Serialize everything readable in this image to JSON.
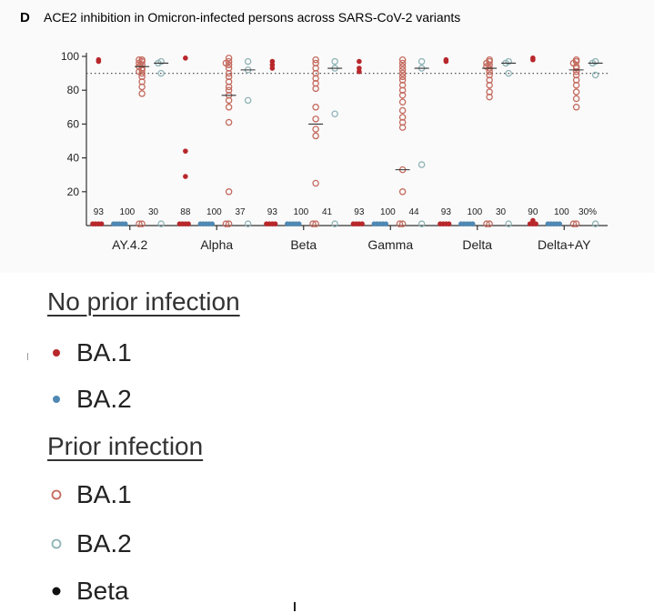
{
  "chart_data": {
    "type": "scatter",
    "panel_letter": "D",
    "title": "ACE2 inhibition in Omicron-infected persons across SARS-CoV-2 variants",
    "ylim": [
      0,
      100
    ],
    "yticks": [
      20,
      40,
      60,
      80,
      100
    ],
    "threshold": 90,
    "grid": false,
    "categories": [
      "AY.4.2",
      "Alpha",
      "Beta",
      "Gamma",
      "Delta",
      "Delta+AY"
    ],
    "groups": [
      "no_prior_BA1",
      "no_prior_BA2",
      "prior_BA1",
      "prior_BA2"
    ],
    "percent_labels": [
      [
        "93",
        "100",
        "30"
      ],
      [
        "88",
        "100",
        "37"
      ],
      [
        "93",
        "100",
        "41"
      ],
      [
        "93",
        "100",
        "44"
      ],
      [
        "93",
        "100",
        "30"
      ],
      [
        "90",
        "100",
        "30%"
      ]
    ],
    "series": [
      {
        "group": "no_prior_BA1",
        "values": [
          [
            98,
            97,
            1,
            1,
            1,
            1
          ],
          [
            99,
            44,
            29,
            1,
            1,
            1,
            1
          ],
          [
            97,
            95,
            93,
            1,
            1,
            1,
            1
          ],
          [
            97,
            93,
            91,
            1,
            1,
            1,
            1
          ],
          [
            98,
            97,
            1,
            1,
            1,
            1
          ],
          [
            99,
            98,
            3,
            1,
            1,
            1
          ]
        ],
        "medians": [
          null,
          null,
          null,
          null,
          null,
          null
        ]
      },
      {
        "group": "no_prior_BA2",
        "values": [
          [
            1,
            1,
            1,
            1,
            1
          ],
          [
            1,
            1,
            1,
            1,
            1
          ],
          [
            1,
            1,
            1,
            1,
            1
          ],
          [
            1,
            1,
            1,
            1,
            1
          ],
          [
            1,
            1,
            1,
            1,
            1
          ],
          [
            1,
            1,
            1,
            1,
            1
          ]
        ],
        "medians": [
          null,
          null,
          null,
          null,
          null,
          null
        ]
      },
      {
        "group": "prior_BA1",
        "values": [
          [
            98,
            98,
            97,
            96,
            95,
            94,
            93,
            92,
            91,
            90,
            88,
            85,
            82,
            78,
            1,
            1
          ],
          [
            99,
            97,
            96,
            95,
            93,
            90,
            88,
            85,
            82,
            80,
            77,
            74,
            70,
            61,
            20,
            1,
            1
          ],
          [
            98,
            96,
            93,
            90,
            87,
            84,
            81,
            70,
            63,
            57,
            53,
            25,
            1,
            1
          ],
          [
            98,
            96,
            94,
            92,
            90,
            88,
            86,
            83,
            80,
            77,
            73,
            68,
            64,
            61,
            58,
            33,
            20,
            1,
            1
          ],
          [
            98,
            97,
            96,
            95,
            94,
            93,
            91,
            89,
            86,
            83,
            79,
            76,
            1,
            1
          ],
          [
            98,
            97,
            96,
            94,
            93,
            91,
            89,
            86,
            83,
            79,
            75,
            70,
            1,
            1
          ]
        ],
        "medians": [
          94,
          77,
          60,
          33,
          93,
          92
        ]
      },
      {
        "group": "prior_BA2",
        "values": [
          [
            97,
            96,
            90,
            1
          ],
          [
            97,
            92,
            74,
            1
          ],
          [
            97,
            93,
            66,
            1
          ],
          [
            97,
            93,
            36,
            1
          ],
          [
            97,
            96,
            90,
            1
          ],
          [
            97,
            96,
            89,
            1
          ]
        ],
        "medians": [
          96,
          92,
          93,
          93,
          96,
          96
        ]
      }
    ],
    "colors": {
      "ba1_red": "#b8272b",
      "prior_ba1_ring": "#c46a5e",
      "ba2_blue": "#4f88b3",
      "prior_ba2_ring": "#8fb3b6",
      "beta_black": "#111111"
    }
  },
  "legend": {
    "no_prior_title": "No prior infection",
    "prior_title": "Prior infection",
    "items": [
      {
        "label": "BA.1",
        "marker": "filled",
        "color": "#b8272b"
      },
      {
        "label": "BA.2",
        "marker": "filled",
        "color": "#4f88b3"
      },
      {
        "label": "BA.1",
        "marker": "ring",
        "color": "#c46a5e"
      },
      {
        "label": "BA.2",
        "marker": "ring",
        "color": "#8fb3b6"
      },
      {
        "label": "Beta",
        "marker": "filled",
        "color": "#111111"
      }
    ]
  }
}
